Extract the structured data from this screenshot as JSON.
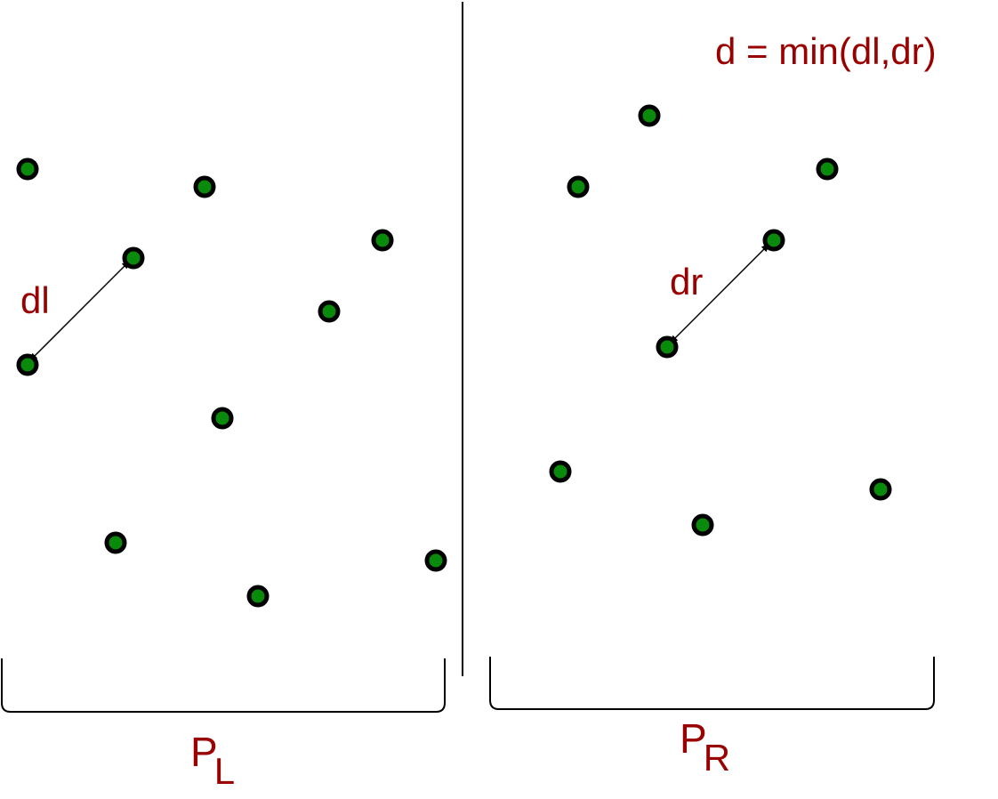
{
  "labels": {
    "formula": "d = min(dl,dr)",
    "dl": "dl",
    "dr": "dr",
    "pl_main": "P",
    "pl_sub": "L",
    "pr_main": "P",
    "pr_sub": "R"
  },
  "colors": {
    "point_fill": "#0a8a0a",
    "point_stroke": "#000000",
    "label": "#990000",
    "line": "#000000"
  }
}
